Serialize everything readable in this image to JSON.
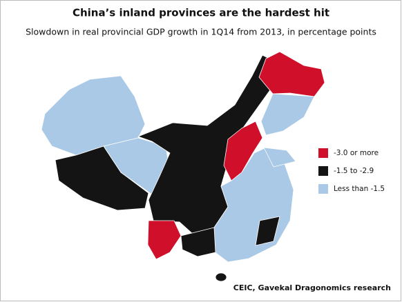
{
  "header": {
    "title": "China’s inland provinces are the hardest hit",
    "subtitle": "Slowdown in real provincial GDP growth in 1Q14 from 2013, in percentage points"
  },
  "legend": {
    "items": [
      {
        "label": "-3.0 or more",
        "color": "#d0102a"
      },
      {
        "label": "-1.5 to -2.9",
        "color": "#141414"
      },
      {
        "label": "Less than -1.5",
        "color": "#a9c9e6"
      }
    ]
  },
  "source": "CEIC, Gavekal Dragonomics research"
}
